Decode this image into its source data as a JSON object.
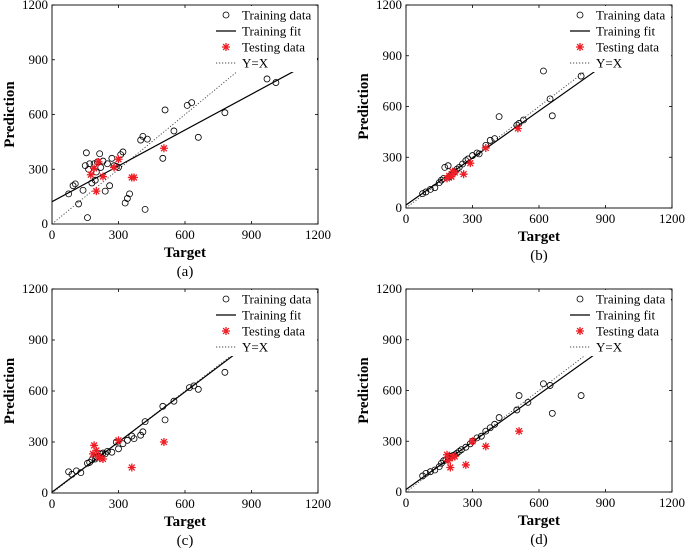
{
  "chart_data": [
    {
      "type": "scatter",
      "panel_label": "(a)",
      "xlabel": "Target",
      "ylabel": "Prediction",
      "xlim": [
        0,
        1200
      ],
      "ylim": [
        0,
        1200
      ],
      "xticks": [
        0,
        300,
        600,
        900,
        1200
      ],
      "yticks": [
        0,
        300,
        600,
        900,
        1200
      ],
      "grid": false,
      "legend_position": "top-right",
      "legend": [
        "Training data",
        "Training fit",
        "Testing data",
        "Y=X"
      ],
      "series": [
        {
          "name": "Training data",
          "marker": "circle",
          "points": [
            [
              75,
              165
            ],
            [
              95,
              210
            ],
            [
              105,
              220
            ],
            [
              120,
              110
            ],
            [
              140,
              185
            ],
            [
              150,
              320
            ],
            [
              155,
              390
            ],
            [
              160,
              35
            ],
            [
              165,
              300
            ],
            [
              170,
              330
            ],
            [
              180,
              225
            ],
            [
              190,
              330
            ],
            [
              195,
              240
            ],
            [
              200,
              285
            ],
            [
              205,
              340
            ],
            [
              215,
              385
            ],
            [
              220,
              310
            ],
            [
              230,
              345
            ],
            [
              240,
              180
            ],
            [
              250,
              330
            ],
            [
              260,
              210
            ],
            [
              270,
              360
            ],
            [
              280,
              320
            ],
            [
              290,
              315
            ],
            [
              300,
              310
            ],
            [
              310,
              380
            ],
            [
              320,
              395
            ],
            [
              330,
              115
            ],
            [
              340,
              140
            ],
            [
              350,
              165
            ],
            [
              400,
              460
            ],
            [
              410,
              480
            ],
            [
              420,
              80
            ],
            [
              430,
              465
            ],
            [
              500,
              360
            ],
            [
              510,
              625
            ],
            [
              550,
              510
            ],
            [
              610,
              650
            ],
            [
              630,
              665
            ],
            [
              660,
              475
            ],
            [
              780,
              610
            ],
            [
              970,
              795
            ],
            [
              1010,
              775
            ]
          ]
        },
        {
          "name": "Testing data",
          "marker": "star",
          "points": [
            [
              175,
              270
            ],
            [
              190,
              305
            ],
            [
              200,
              180
            ],
            [
              210,
              340
            ],
            [
              230,
              260
            ],
            [
              280,
              310
            ],
            [
              300,
              355
            ],
            [
              360,
              255
            ],
            [
              370,
              255
            ],
            [
              505,
              415
            ]
          ]
        },
        {
          "name": "Training fit",
          "line": [
            [
              0,
              122
            ],
            [
              1200,
              908
            ]
          ]
        },
        {
          "name": "Y=X",
          "line": [
            [
              0,
              0
            ],
            [
              1200,
              1200
            ]
          ]
        }
      ]
    },
    {
      "type": "scatter",
      "panel_label": "(b)",
      "xlabel": "Target",
      "ylabel": "Prediction",
      "xlim": [
        0,
        1200
      ],
      "ylim": [
        0,
        1200
      ],
      "xticks": [
        0,
        300,
        600,
        900,
        1200
      ],
      "yticks": [
        0,
        300,
        600,
        900,
        1200
      ],
      "grid": false,
      "legend_position": "top-right",
      "legend": [
        "Training data",
        "Training fit",
        "Testing data",
        "Y=X"
      ],
      "series": [
        {
          "name": "Training data",
          "marker": "circle",
          "points": [
            [
              75,
              85
            ],
            [
              90,
              95
            ],
            [
              110,
              110
            ],
            [
              130,
              120
            ],
            [
              150,
              150
            ],
            [
              160,
              165
            ],
            [
              170,
              175
            ],
            [
              175,
              240
            ],
            [
              190,
              250
            ],
            [
              195,
              185
            ],
            [
              200,
              190
            ],
            [
              210,
              200
            ],
            [
              220,
              215
            ],
            [
              230,
              230
            ],
            [
              240,
              240
            ],
            [
              255,
              260
            ],
            [
              270,
              280
            ],
            [
              280,
              290
            ],
            [
              300,
              310
            ],
            [
              320,
              325
            ],
            [
              330,
              320
            ],
            [
              360,
              370
            ],
            [
              380,
              400
            ],
            [
              400,
              410
            ],
            [
              420,
              540
            ],
            [
              500,
              490
            ],
            [
              510,
              500
            ],
            [
              530,
              520
            ],
            [
              620,
              810
            ],
            [
              650,
              645
            ],
            [
              660,
              545
            ],
            [
              790,
              780
            ],
            [
              990,
              975
            ],
            [
              1010,
              1000
            ]
          ]
        },
        {
          "name": "Testing data",
          "marker": "star",
          "points": [
            [
              185,
              175
            ],
            [
              195,
              190
            ],
            [
              205,
              185
            ],
            [
              210,
              215
            ],
            [
              220,
              210
            ],
            [
              260,
              200
            ],
            [
              290,
              265
            ],
            [
              360,
              355
            ],
            [
              505,
              470
            ]
          ]
        },
        {
          "name": "Training fit",
          "line": [
            [
              0,
              18
            ],
            [
              1200,
              1130
            ]
          ]
        },
        {
          "name": "Y=X",
          "line": [
            [
              0,
              0
            ],
            [
              1200,
              1200
            ]
          ]
        }
      ]
    },
    {
      "type": "scatter",
      "panel_label": "(c)",
      "xlabel": "Target",
      "ylabel": "Prediction",
      "xlim": [
        0,
        1200
      ],
      "ylim": [
        0,
        1200
      ],
      "xticks": [
        0,
        300,
        600,
        900,
        1200
      ],
      "yticks": [
        0,
        300,
        600,
        900,
        1200
      ],
      "grid": false,
      "legend_position": "top-right",
      "legend": [
        "Training data",
        "Training fit",
        "Testing data",
        "Y=X"
      ],
      "series": [
        {
          "name": "Training data",
          "marker": "circle",
          "points": [
            [
              75,
              125
            ],
            [
              90,
              110
            ],
            [
              110,
              130
            ],
            [
              130,
              120
            ],
            [
              160,
              175
            ],
            [
              170,
              180
            ],
            [
              180,
              195
            ],
            [
              195,
              200
            ],
            [
              200,
              210
            ],
            [
              210,
              215
            ],
            [
              220,
              230
            ],
            [
              230,
              235
            ],
            [
              240,
              230
            ],
            [
              250,
              245
            ],
            [
              270,
              240
            ],
            [
              290,
              300
            ],
            [
              300,
              260
            ],
            [
              320,
              290
            ],
            [
              340,
              310
            ],
            [
              360,
              335
            ],
            [
              370,
              320
            ],
            [
              400,
              340
            ],
            [
              410,
              360
            ],
            [
              420,
              420
            ],
            [
              500,
              510
            ],
            [
              510,
              430
            ],
            [
              550,
              540
            ],
            [
              620,
              620
            ],
            [
              640,
              630
            ],
            [
              660,
              610
            ],
            [
              780,
              710
            ],
            [
              980,
              940
            ],
            [
              1010,
              950
            ]
          ]
        },
        {
          "name": "Testing data",
          "marker": "star",
          "points": [
            [
              185,
              230
            ],
            [
              190,
              280
            ],
            [
              200,
              250
            ],
            [
              210,
              215
            ],
            [
              215,
              205
            ],
            [
              230,
              200
            ],
            [
              300,
              310
            ],
            [
              360,
              150
            ],
            [
              505,
              300
            ]
          ]
        },
        {
          "name": "Training fit",
          "line": [
            [
              0,
              5
            ],
            [
              1200,
              1185
            ]
          ]
        },
        {
          "name": "Y=X",
          "line": [
            [
              0,
              0
            ],
            [
              1200,
              1200
            ]
          ]
        }
      ]
    },
    {
      "type": "scatter",
      "panel_label": "(d)",
      "xlabel": "Target",
      "ylabel": "Prediction",
      "xlim": [
        0,
        1200
      ],
      "ylim": [
        0,
        1200
      ],
      "xticks": [
        0,
        300,
        600,
        900,
        1200
      ],
      "yticks": [
        0,
        300,
        600,
        900,
        1200
      ],
      "grid": false,
      "legend_position": "top-right",
      "legend": [
        "Training data",
        "Training fit",
        "Testing data",
        "Y=X"
      ],
      "series": [
        {
          "name": "Training data",
          "marker": "circle",
          "points": [
            [
              75,
              95
            ],
            [
              90,
              110
            ],
            [
              110,
              120
            ],
            [
              130,
              130
            ],
            [
              150,
              150
            ],
            [
              160,
              170
            ],
            [
              170,
              185
            ],
            [
              180,
              190
            ],
            [
              190,
              200
            ],
            [
              200,
              210
            ],
            [
              210,
              215
            ],
            [
              220,
              220
            ],
            [
              230,
              230
            ],
            [
              240,
              240
            ],
            [
              250,
              250
            ],
            [
              270,
              265
            ],
            [
              290,
              285
            ],
            [
              300,
              300
            ],
            [
              320,
              320
            ],
            [
              340,
              330
            ],
            [
              360,
              360
            ],
            [
              380,
              380
            ],
            [
              400,
              400
            ],
            [
              420,
              440
            ],
            [
              500,
              485
            ],
            [
              510,
              570
            ],
            [
              550,
              530
            ],
            [
              620,
              640
            ],
            [
              650,
              630
            ],
            [
              660,
              465
            ],
            [
              790,
              570
            ],
            [
              980,
              995
            ],
            [
              1010,
              990
            ]
          ]
        },
        {
          "name": "Testing data",
          "marker": "star",
          "points": [
            [
              185,
              220
            ],
            [
              190,
              185
            ],
            [
              200,
              145
            ],
            [
              210,
              205
            ],
            [
              220,
              210
            ],
            [
              270,
              160
            ],
            [
              300,
              300
            ],
            [
              360,
              270
            ],
            [
              510,
              360
            ]
          ]
        },
        {
          "name": "Training fit",
          "line": [
            [
              0,
              15
            ],
            [
              1200,
              1140
            ]
          ]
        },
        {
          "name": "Y=X",
          "line": [
            [
              0,
              0
            ],
            [
              1200,
              1200
            ]
          ]
        }
      ]
    }
  ]
}
